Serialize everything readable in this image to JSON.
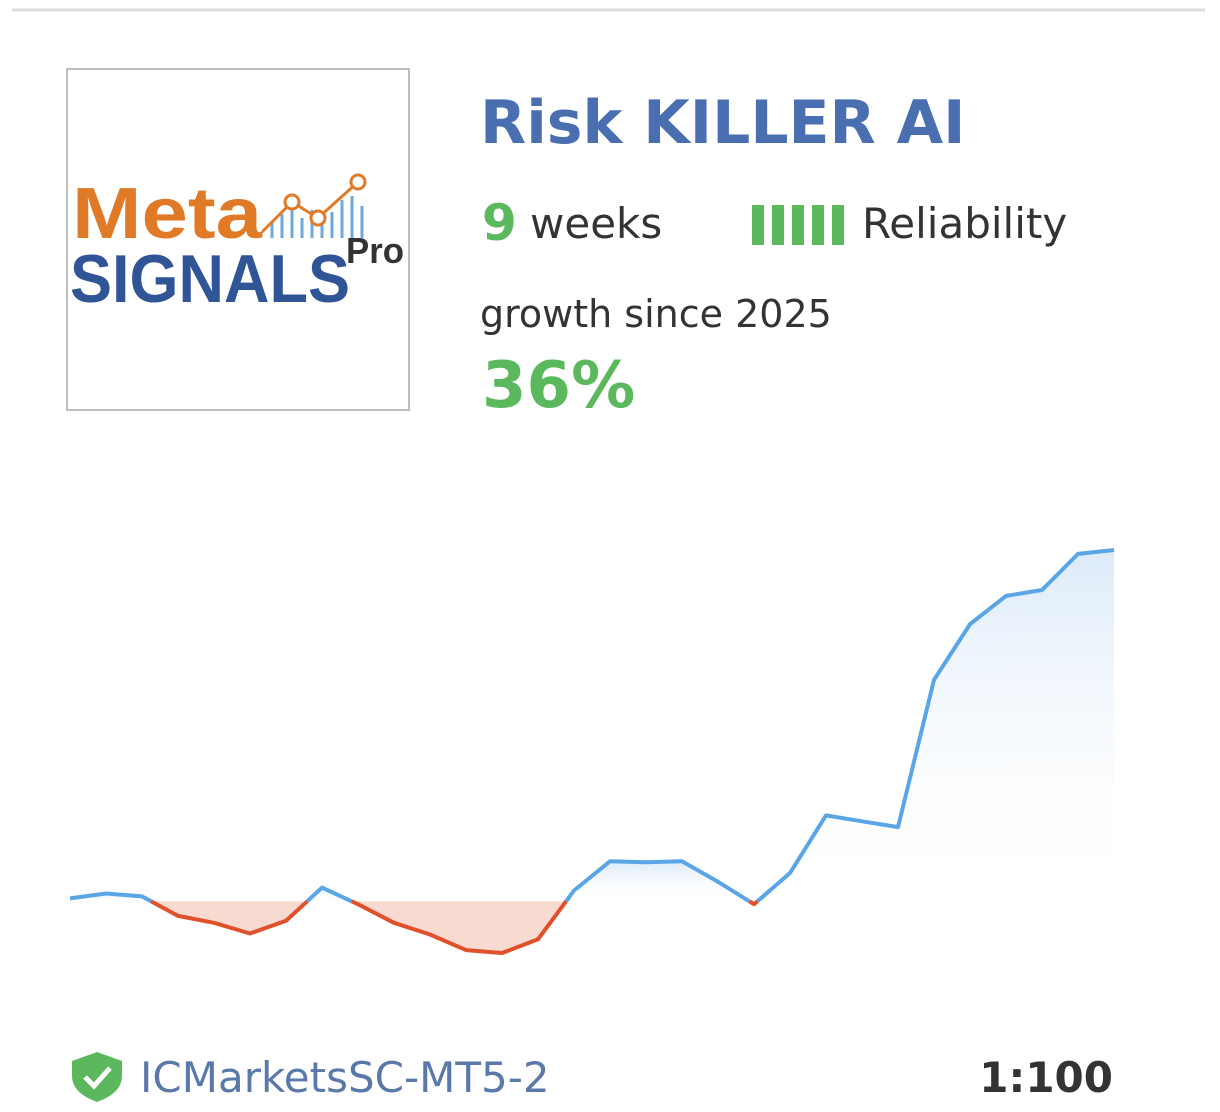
{
  "card": {
    "logo": {
      "line1": "Meta",
      "line2": "SIGNALS",
      "badge": "Pro"
    },
    "title": "Risk KILLER AI",
    "age_count": "9",
    "age_unit": "weeks",
    "reliability_label": "Reliability",
    "growth_caption": "growth since 2025",
    "growth": "36%",
    "server": "ICMarketsSC-MT5-2",
    "leverage": "1:100"
  },
  "chart_data": {
    "type": "line",
    "values": [
      0.3,
      0.8,
      0.5,
      -1.5,
      -2.2,
      -3.3,
      -2,
      1.4,
      -0.3,
      -2.2,
      -3.4,
      -5.0,
      -5.3,
      -3.9,
      1.1,
      4.1,
      4.0,
      4.1,
      2.0,
      -0.3,
      2.9,
      8.8,
      8.2,
      7.6,
      22.7,
      28.4,
      31.3,
      31.9,
      35.6,
      36.0
    ],
    "up_color": "#5aa5e6",
    "down_color": "#e0502a"
  }
}
